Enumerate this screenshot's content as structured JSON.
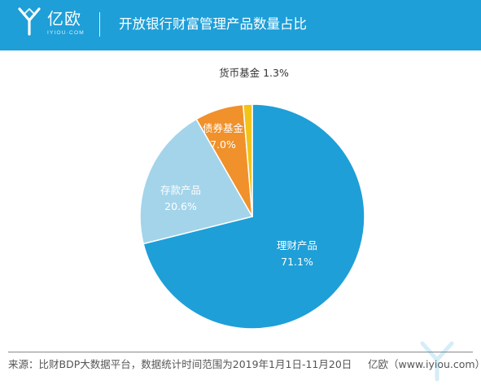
{
  "header": {
    "logo_name": "亿欧",
    "logo_domain": "IYIOU·COM",
    "title": "开放银行财富管理产品数量占比"
  },
  "chart_data": {
    "type": "pie",
    "title": "开放银行财富管理产品数量占比",
    "start_angle_deg": 0,
    "direction": "clockwise",
    "slices": [
      {
        "label": "理财产品",
        "value": 71.1,
        "value_label": "71.1%",
        "color": "#1e9fd8",
        "label_color": "#ffffff"
      },
      {
        "label": "存款产品",
        "value": 20.6,
        "value_label": "20.6%",
        "color": "#a3d4ea",
        "label_color": "#ffffff"
      },
      {
        "label": "债券基金",
        "value": 7.0,
        "value_label": "7.0%",
        "color": "#f0912b",
        "label_color": "#ffffff"
      },
      {
        "label": "货币基金",
        "value": 1.3,
        "value_label": "1.3%",
        "color": "#f2c318",
        "label_color": "#333333"
      }
    ]
  },
  "footer": {
    "source": "来源：比财BDP大数据平台，数据统计时间范围为2019年1月1日-11月20日",
    "brand": "亿欧（www.iyiou.com）"
  }
}
